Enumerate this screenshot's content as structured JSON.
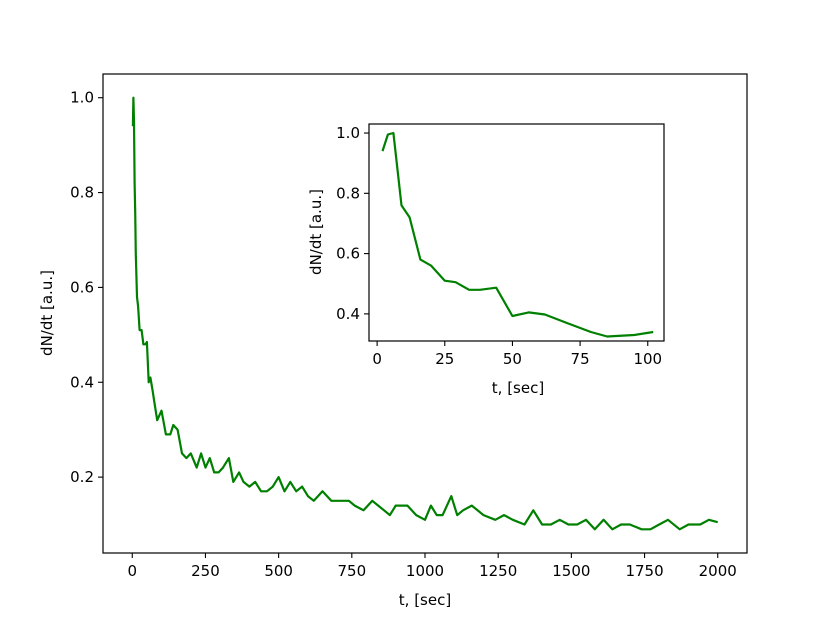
{
  "colors": {
    "series": "#008000",
    "axes": "#000000",
    "background": "#ffffff"
  },
  "chart_data": [
    {
      "name": "main",
      "type": "line",
      "title": "",
      "xlabel": "t, [sec]",
      "ylabel": "dN/dt [a.u.]",
      "xlim": [
        -100,
        2100
      ],
      "ylim": [
        0.04,
        1.05
      ],
      "xticks": [
        0,
        250,
        500,
        750,
        1000,
        1250,
        1500,
        1750,
        2000
      ],
      "xtick_labels": [
        "0",
        "250",
        "500",
        "750",
        "1000",
        "1250",
        "1500",
        "1750",
        "2000"
      ],
      "yticks": [
        0.2,
        0.4,
        0.6,
        0.8,
        1.0
      ],
      "ytick_labels": [
        "0.2",
        "0.4",
        "0.6",
        "0.8",
        "1.0"
      ],
      "grid": false,
      "series": [
        {
          "color": "#008000",
          "x": [
            2,
            4,
            6,
            8,
            10,
            12,
            16,
            20,
            25,
            32,
            38,
            45,
            50,
            56,
            62,
            70,
            75,
            85,
            100,
            115,
            130,
            140,
            155,
            170,
            185,
            200,
            220,
            235,
            250,
            265,
            280,
            295,
            310,
            330,
            345,
            365,
            380,
            400,
            420,
            440,
            460,
            480,
            500,
            520,
            540,
            560,
            580,
            600,
            620,
            650,
            680,
            700,
            720,
            740,
            760,
            790,
            820,
            840,
            860,
            880,
            900,
            920,
            940,
            970,
            1000,
            1020,
            1040,
            1060,
            1090,
            1110,
            1130,
            1160,
            1200,
            1240,
            1270,
            1300,
            1340,
            1370,
            1400,
            1430,
            1460,
            1490,
            1520,
            1550,
            1580,
            1610,
            1640,
            1670,
            1700,
            1740,
            1770,
            1800,
            1830,
            1870,
            1900,
            1940,
            1970,
            2000
          ],
          "y": [
            0.94,
            1.0,
            0.95,
            0.82,
            0.76,
            0.67,
            0.58,
            0.56,
            0.51,
            0.51,
            0.48,
            0.48,
            0.485,
            0.4,
            0.41,
            0.38,
            0.36,
            0.32,
            0.34,
            0.29,
            0.29,
            0.31,
            0.3,
            0.25,
            0.24,
            0.25,
            0.22,
            0.25,
            0.22,
            0.24,
            0.21,
            0.21,
            0.22,
            0.24,
            0.19,
            0.21,
            0.19,
            0.18,
            0.19,
            0.17,
            0.17,
            0.18,
            0.2,
            0.17,
            0.19,
            0.17,
            0.18,
            0.16,
            0.15,
            0.17,
            0.15,
            0.15,
            0.15,
            0.15,
            0.14,
            0.13,
            0.15,
            0.14,
            0.13,
            0.12,
            0.14,
            0.14,
            0.14,
            0.12,
            0.11,
            0.14,
            0.12,
            0.12,
            0.16,
            0.12,
            0.13,
            0.14,
            0.12,
            0.11,
            0.12,
            0.11,
            0.1,
            0.13,
            0.1,
            0.1,
            0.11,
            0.1,
            0.1,
            0.11,
            0.09,
            0.11,
            0.09,
            0.1,
            0.1,
            0.09,
            0.09,
            0.1,
            0.11,
            0.09,
            0.1,
            0.1,
            0.11,
            0.105
          ]
        }
      ]
    },
    {
      "name": "inset",
      "type": "line",
      "title": "",
      "xlabel": "t, [sec]",
      "ylabel": "dN/dt [a.u.]",
      "xlim": [
        -3,
        106
      ],
      "ylim": [
        0.31,
        1.03
      ],
      "xticks": [
        0,
        25,
        50,
        75,
        100
      ],
      "xtick_labels": [
        "0",
        "25",
        "50",
        "75",
        "100"
      ],
      "yticks": [
        0.4,
        0.6,
        0.8,
        1.0
      ],
      "ytick_labels": [
        "0.4",
        "0.6",
        "0.8",
        "1.0"
      ],
      "grid": false,
      "series": [
        {
          "color": "#008000",
          "x": [
            2,
            4,
            6,
            9,
            12,
            16,
            20,
            25,
            29,
            34,
            38,
            44,
            50,
            56,
            62,
            70,
            79,
            85,
            95,
            102
          ],
          "y": [
            0.94,
            0.995,
            1.0,
            0.76,
            0.72,
            0.58,
            0.56,
            0.51,
            0.505,
            0.48,
            0.48,
            0.487,
            0.393,
            0.405,
            0.398,
            0.37,
            0.34,
            0.325,
            0.33,
            0.34
          ]
        }
      ]
    }
  ]
}
